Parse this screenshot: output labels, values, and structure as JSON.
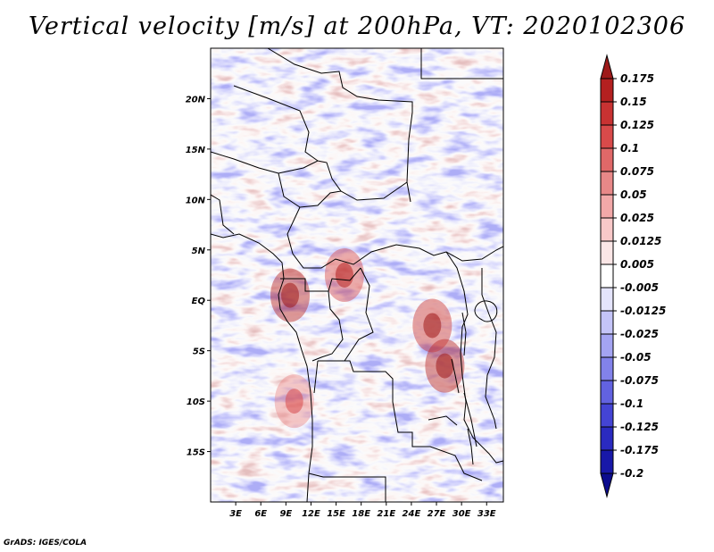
{
  "title": "Vertical velocity [m/s] at 200hPa, VT: 2020102306",
  "credit": "GrADS: IGES/COLA",
  "chart_data": {
    "type": "heatmap",
    "variable": "Vertical velocity",
    "units": "m/s",
    "level": "200hPa",
    "valid_time": "2020102306",
    "x_ticks": [
      "3E",
      "6E",
      "9E",
      "12E",
      "15E",
      "18E",
      "21E",
      "24E",
      "27E",
      "30E",
      "33E"
    ],
    "x_tick_values": [
      3,
      6,
      9,
      12,
      15,
      18,
      21,
      24,
      27,
      30,
      33
    ],
    "y_ticks": [
      "20N",
      "15N",
      "10N",
      "5N",
      "EQ",
      "5S",
      "10S",
      "15S"
    ],
    "y_tick_values": [
      20,
      15,
      10,
      5,
      0,
      -5,
      -10,
      -15
    ],
    "xlim": [
      0,
      35
    ],
    "ylim": [
      -20,
      25
    ],
    "colorbar": {
      "labels": [
        "0.175",
        "0.15",
        "0.125",
        "0.1",
        "0.075",
        "0.05",
        "0.025",
        "0.0125",
        "0.005",
        "-0.005",
        "-0.0125",
        "-0.025",
        "-0.05",
        "-0.075",
        "-0.1",
        "-0.125",
        "-0.175",
        "-0.2"
      ],
      "colors": [
        "#9e1a1a",
        "#b42020",
        "#c83232",
        "#d84a4a",
        "#e06868",
        "#e88888",
        "#f2a8a8",
        "#f8c8c8",
        "#fbe6e6",
        "#ffffff",
        "#e4e4fc",
        "#c4c4f8",
        "#a4a4f2",
        "#8282ea",
        "#6262e0",
        "#4444d4",
        "#2a2ac0",
        "#1818a8",
        "#0c0c8e"
      ]
    },
    "hotspots": [
      {
        "lon": 9.5,
        "lat": 0.5,
        "value": 0.15
      },
      {
        "lon": 28.0,
        "lat": -6.5,
        "value": 0.15
      },
      {
        "lon": 26.5,
        "lat": -2.5,
        "value": 0.125
      },
      {
        "lon": 10.0,
        "lat": -10.0,
        "value": 0.05
      },
      {
        "lon": 16.0,
        "lat": 2.5,
        "value": 0.1
      }
    ]
  }
}
